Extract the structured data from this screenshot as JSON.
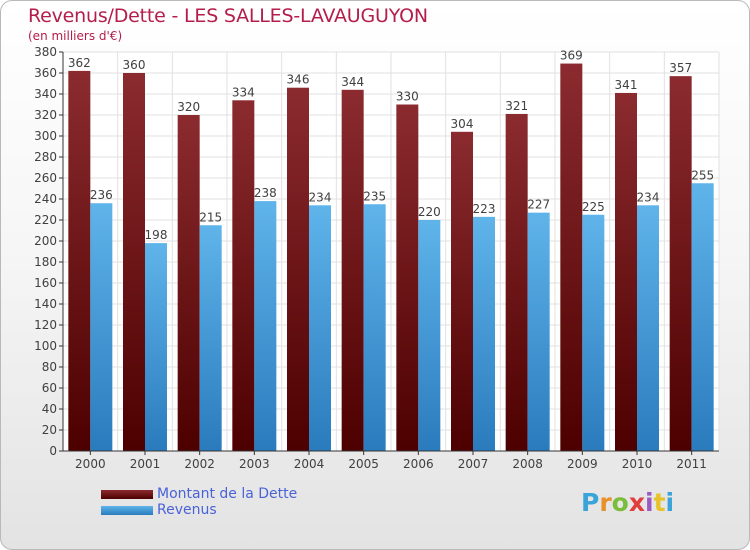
{
  "title": "Revenus/Dette - LES SALLES-LAVAUGUYON",
  "subtitle": "(en milliers d'€)",
  "logo": {
    "letters": [
      "P",
      "r",
      "o",
      "x",
      "i",
      "t",
      "i"
    ],
    "colors": [
      "#3aa3d8",
      "#e8912a",
      "#7bbd3a",
      "#e23d3d",
      "#9a5bc0",
      "#e8c22a",
      "#3aa3d8"
    ]
  },
  "colors": {
    "dette_top": "#8b2b2f",
    "dette_bottom": "#4d0000",
    "revenus_top": "#5fb4ea",
    "revenus_bottom": "#2a7bbd",
    "label": "#404040"
  },
  "chart_data": {
    "type": "bar",
    "title": "Revenus/Dette - LES SALLES-LAVAUGUYON",
    "subtitle": "(en milliers d'€)",
    "categories": [
      "2000",
      "2001",
      "2002",
      "2003",
      "2004",
      "2005",
      "2006",
      "2007",
      "2008",
      "2009",
      "2010",
      "2011"
    ],
    "series": [
      {
        "name": "Montant de la Dette",
        "values": [
          362,
          360,
          320,
          334,
          346,
          344,
          330,
          304,
          321,
          369,
          341,
          357
        ]
      },
      {
        "name": "Revenus",
        "values": [
          236,
          198,
          215,
          238,
          234,
          235,
          220,
          223,
          227,
          225,
          234,
          255
        ]
      }
    ],
    "ylim": [
      0,
      380
    ],
    "ytick_step": 20,
    "grid": true,
    "legend": "bottom-left"
  }
}
